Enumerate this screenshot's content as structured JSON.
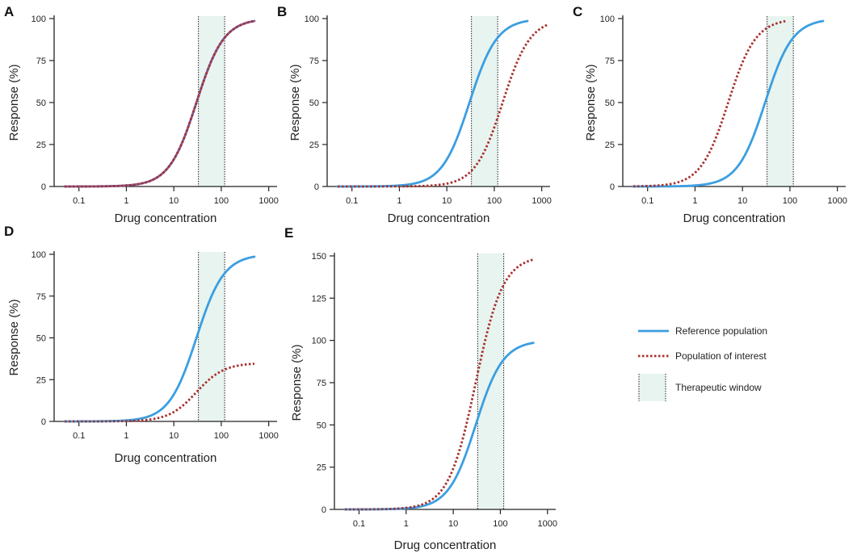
{
  "legend": {
    "reference": "Reference population",
    "interest": "Population of interest",
    "window": "Therapeutic window"
  },
  "colors": {
    "reference": "#3b9ee0",
    "interest": "#a8302d",
    "overlap": "#7d5c9c",
    "window_fill": "#e8f4f0",
    "axis": "#222222"
  },
  "chart_data": [
    {
      "id": "A",
      "type": "line",
      "letter": "A",
      "xscale": "log",
      "xlabel": "Drug concentration",
      "ylabel": "Response (%)",
      "xticks": [
        0.1,
        1,
        10,
        100,
        1000
      ],
      "xtick_labels": [
        "0.1",
        "1",
        "10",
        "100",
        "1000"
      ],
      "yticks": [
        0,
        25,
        50,
        75,
        100
      ],
      "xlim": [
        0.03,
        1500
      ],
      "ylim": [
        0,
        100
      ],
      "therapeutic_window": [
        33,
        118
      ],
      "series": [
        {
          "name": "Reference population",
          "style": "solid",
          "emax": 100,
          "ec50": 30,
          "hill": 1.5,
          "x_range": [
            0.05,
            500
          ]
        },
        {
          "name": "Population of interest",
          "style": "dotted",
          "emax": 100,
          "ec50": 30,
          "hill": 1.5,
          "x_range": [
            0.05,
            500
          ]
        }
      ]
    },
    {
      "id": "B",
      "type": "line",
      "letter": "B",
      "xscale": "log",
      "xlabel": "Drug concentration",
      "ylabel": "Response (%)",
      "xticks": [
        0.1,
        1,
        10,
        100,
        1000
      ],
      "xtick_labels": [
        "0.1",
        "1",
        "10",
        "100",
        "1000"
      ],
      "yticks": [
        0,
        25,
        50,
        75,
        100
      ],
      "xlim": [
        0.03,
        1500
      ],
      "ylim": [
        0,
        100
      ],
      "therapeutic_window": [
        33,
        118
      ],
      "series": [
        {
          "name": "Reference population",
          "style": "solid",
          "emax": 100,
          "ec50": 30,
          "hill": 1.5,
          "x_range": [
            0.05,
            500
          ]
        },
        {
          "name": "Population of interest",
          "style": "dotted",
          "emax": 100,
          "ec50": 150,
          "hill": 1.5,
          "x_range": [
            0.05,
            1300
          ]
        }
      ]
    },
    {
      "id": "C",
      "type": "line",
      "letter": "C",
      "xscale": "log",
      "xlabel": "Drug concentration",
      "ylabel": "Response (%)",
      "xticks": [
        0.1,
        1,
        10,
        100,
        1000
      ],
      "xtick_labels": [
        "0.1",
        "1",
        "10",
        "100",
        "1000"
      ],
      "yticks": [
        0,
        25,
        50,
        75,
        100
      ],
      "xlim": [
        0.03,
        1500
      ],
      "ylim": [
        0,
        100
      ],
      "therapeutic_window": [
        33,
        118
      ],
      "series": [
        {
          "name": "Reference population",
          "style": "solid",
          "emax": 100,
          "ec50": 30,
          "hill": 1.5,
          "x_range": [
            0.05,
            500
          ]
        },
        {
          "name": "Population of interest",
          "style": "dotted",
          "emax": 100,
          "ec50": 5,
          "hill": 1.5,
          "x_range": [
            0.05,
            80
          ]
        }
      ]
    },
    {
      "id": "D",
      "type": "line",
      "letter": "D",
      "xscale": "log",
      "xlabel": "Drug concentration",
      "ylabel": "Response (%)",
      "xticks": [
        0.1,
        1,
        10,
        100,
        1000
      ],
      "xtick_labels": [
        "0.1",
        "1",
        "10",
        "100",
        "1000"
      ],
      "yticks": [
        0,
        25,
        50,
        75,
        100
      ],
      "xlim": [
        0.03,
        1500
      ],
      "ylim": [
        0,
        100
      ],
      "therapeutic_window": [
        33,
        118
      ],
      "series": [
        {
          "name": "Reference population",
          "style": "solid",
          "emax": 100,
          "ec50": 30,
          "hill": 1.5,
          "x_range": [
            0.05,
            500
          ]
        },
        {
          "name": "Population of interest",
          "style": "dotted",
          "emax": 35,
          "ec50": 30,
          "hill": 1.5,
          "x_range": [
            0.05,
            500
          ]
        }
      ]
    },
    {
      "id": "E",
      "type": "line",
      "letter": "E",
      "xscale": "log",
      "xlabel": "Drug concentration",
      "ylabel": "Response (%)",
      "xticks": [
        0.1,
        1,
        10,
        100,
        1000
      ],
      "xtick_labels": [
        "0.1",
        "1",
        "10",
        "100",
        "1000"
      ],
      "yticks": [
        0,
        25,
        50,
        75,
        100,
        125,
        150
      ],
      "xlim": [
        0.03,
        1500
      ],
      "ylim": [
        0,
        150
      ],
      "therapeutic_window": [
        33,
        118
      ],
      "series": [
        {
          "name": "Reference population",
          "style": "solid",
          "emax": 100,
          "ec50": 30,
          "hill": 1.5,
          "x_range": [
            0.05,
            500
          ]
        },
        {
          "name": "Population of interest",
          "style": "dotted",
          "emax": 150,
          "ec50": 30,
          "hill": 1.5,
          "x_range": [
            0.05,
            500
          ]
        }
      ]
    }
  ]
}
